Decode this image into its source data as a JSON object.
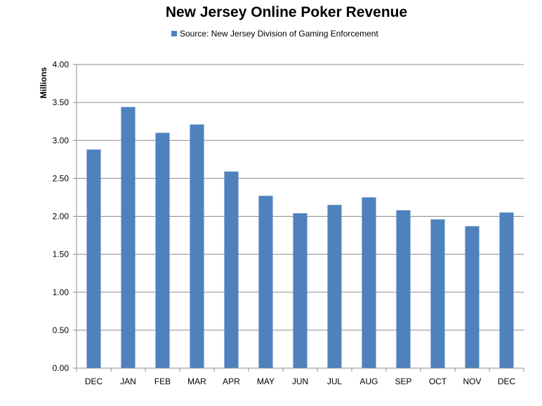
{
  "chart_data": {
    "type": "bar",
    "title": "New Jersey Online Poker Revenue",
    "legend": "Source: New Jersey Division of Gaming Enforcement",
    "legend_placement": "top",
    "ylabel": "Millions",
    "xlabel": "",
    "ylim": [
      0,
      4
    ],
    "yticks": [
      "0.00",
      "0.50",
      "1.00",
      "1.50",
      "2.00",
      "2.50",
      "3.00",
      "3.50",
      "4.00"
    ],
    "grid": true,
    "categories": [
      "DEC",
      "JAN",
      "FEB",
      "MAR",
      "APR",
      "MAY",
      "JUN",
      "JUL",
      "AUG",
      "SEP",
      "OCT",
      "NOV",
      "DEC"
    ],
    "values": [
      2.88,
      3.44,
      3.1,
      3.21,
      2.59,
      2.27,
      2.04,
      2.15,
      2.25,
      2.08,
      1.96,
      1.87,
      2.05
    ],
    "bar_color": "#4F81BD"
  }
}
